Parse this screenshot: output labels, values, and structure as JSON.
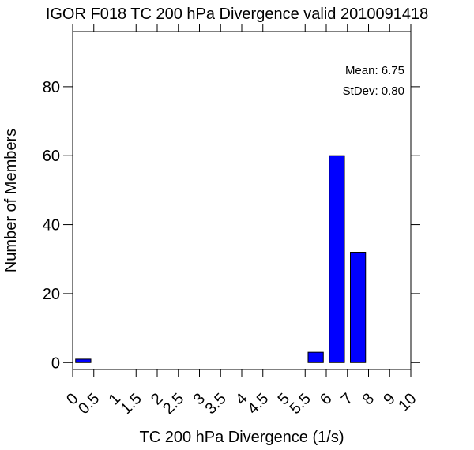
{
  "chart_data": {
    "type": "bar",
    "title": "IGOR F018 TC 200 hPa Divergence valid 2010091418",
    "xlabel": "TC 200 hPa Divergence (1/s)",
    "ylabel": "Number of Members",
    "x_tick_labels": [
      "0",
      "0.5",
      "1",
      "1.5",
      "2",
      "2.5",
      "3",
      "3.5",
      "4",
      "4.5",
      "5",
      "5.5",
      "6",
      "7",
      "8",
      "9",
      "10"
    ],
    "categories": [
      "0-0.5",
      "0.5-1",
      "1-1.5",
      "1.5-2",
      "2-2.5",
      "2.5-3",
      "3-3.5",
      "3.5-4",
      "4-4.5",
      "4.5-5",
      "5-5.5",
      "5.5-6",
      "6-7",
      "7-8",
      "8-9",
      "9-10"
    ],
    "values": [
      1,
      0,
      0,
      0,
      0,
      0,
      0,
      0,
      0,
      0,
      0,
      3,
      60,
      32,
      0,
      0
    ],
    "y_ticks": [
      0,
      20,
      40,
      60,
      80
    ],
    "ylim": [
      -2,
      96
    ],
    "bar_color": "#0000ff",
    "grid": false
  },
  "stats": {
    "mean": "Mean: 6.75",
    "stdev": "StDev: 0.80"
  }
}
